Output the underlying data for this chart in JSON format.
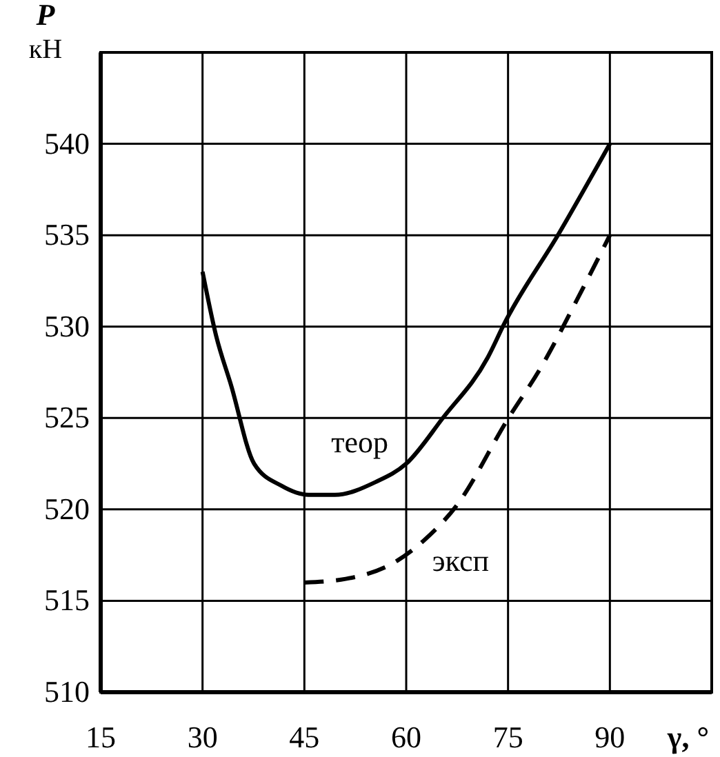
{
  "chart_data": {
    "type": "line",
    "xlabel": "γ, °",
    "ylabel": "P\nкН",
    "xlim": [
      15,
      105
    ],
    "xticks": [
      15,
      30,
      45,
      60,
      75,
      90
    ],
    "ylim": [
      510,
      545
    ],
    "yticks": [
      510,
      515,
      520,
      525,
      530,
      535,
      540
    ],
    "grid": true,
    "marker": "none",
    "series": [
      {
        "name": "теор",
        "color": "#000000",
        "line_style": "solid",
        "x": [
          30,
          32,
          34.2,
          37.6,
          41.6,
          45.6,
          49.5,
          55.5,
          60,
          65.4,
          72,
          74.5,
          82.5,
          90
        ],
        "values": [
          533,
          529.5,
          526.8,
          522.5,
          521.3,
          520.8,
          520.8,
          521.5,
          522.5,
          525,
          528.3,
          530.2,
          535.1,
          540
        ]
      },
      {
        "name": "эксп",
        "color": "#000000",
        "line_style": "dashed",
        "x": [
          45,
          51.1,
          58.7,
          62.6,
          67.4,
          74.9,
          79.9,
          85.2,
          90
        ],
        "values": [
          516,
          516.2,
          517.2,
          518.3,
          520.2,
          524.9,
          527.8,
          531.5,
          535
        ]
      }
    ]
  }
}
